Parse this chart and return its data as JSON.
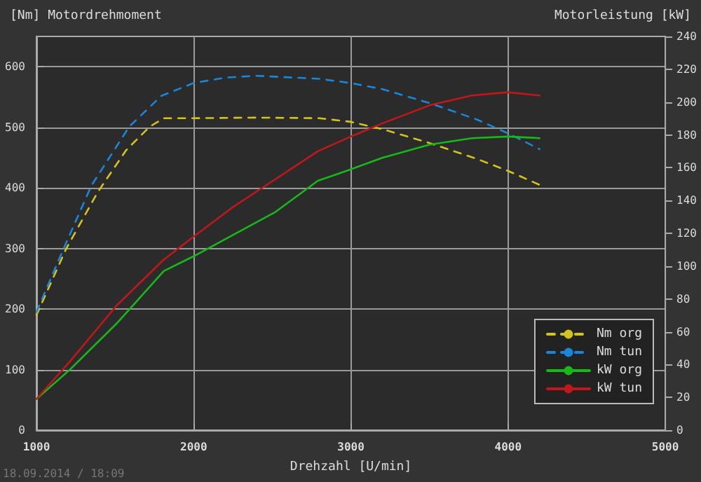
{
  "chart_data": {
    "type": "line",
    "ylabel": "[Nm] Motordrehmoment",
    "y2label": "Motorleistung [kW]",
    "xlabel": "Drehzahl [U/min]",
    "annotations": [
      "18.09.2014 / 18:09"
    ],
    "xlim": [
      1000,
      5000
    ],
    "xticks": [
      1000,
      2000,
      3000,
      4000,
      5000
    ],
    "ylim": [
      0,
      650
    ],
    "yticks": [
      0,
      100,
      200,
      300,
      400,
      500,
      600
    ],
    "y2lim": [
      0,
      240
    ],
    "y2ticks": [
      0,
      20,
      40,
      60,
      80,
      100,
      120,
      140,
      160,
      180,
      200,
      220,
      240
    ],
    "grid": true,
    "legend": "bottom right",
    "marker": "none",
    "series": [
      {
        "name": "Nm org",
        "color": "#d4c419",
        "line_style": "dashed",
        "x": [
          1000,
          1190,
          1390,
          1570,
          1720,
          1810,
          2000,
          2400,
          2800,
          3000,
          3200,
          3500,
          3800,
          4000,
          4200
        ],
        "values": [
          190,
          300,
          393,
          462,
          501,
          515,
          515,
          516,
          515,
          509,
          497,
          474,
          448,
          428,
          405
        ]
      },
      {
        "name": "Nm tun",
        "color": "#1a86d8",
        "line_style": "dashed",
        "x": [
          1000,
          1170,
          1350,
          1590,
          1795,
          2000,
          2200,
          2400,
          2800,
          3000,
          3200,
          3500,
          3800,
          4000,
          4200
        ],
        "values": [
          195,
          298,
          404,
          501,
          552,
          573,
          582,
          585,
          580,
          573,
          563,
          540,
          513,
          490,
          464
        ]
      },
      {
        "name": "kW org",
        "color": "#18b818",
        "line_style": "solid",
        "axis": "y2",
        "x": [
          1000,
          1214,
          1510,
          1810,
          2000,
          2250,
          2520,
          2790,
          3000,
          3200,
          3500,
          3770,
          4000,
          4200
        ],
        "values": [
          19,
          37,
          65,
          97,
          106,
          119,
          133,
          152,
          159,
          166,
          174,
          178,
          179,
          178
        ]
      },
      {
        "name": "kW tun",
        "color": "#c01818",
        "line_style": "solid",
        "axis": "y2",
        "x": [
          1000,
          1214,
          1510,
          1810,
          2000,
          2250,
          2520,
          2790,
          3000,
          3200,
          3500,
          3770,
          4000,
          4200
        ],
        "values": [
          19,
          42,
          76,
          104,
          118,
          136,
          153,
          170,
          179,
          187,
          198,
          204,
          206,
          204
        ]
      }
    ]
  }
}
